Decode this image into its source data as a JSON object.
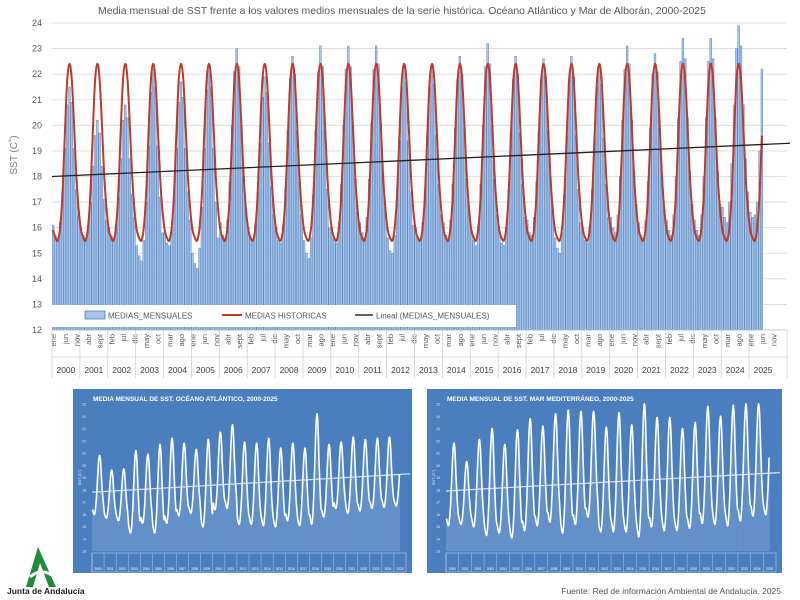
{
  "chart_data": [
    {
      "type": "bar",
      "title": "Media mensual de SST frente a los valores medios mensuales de la serie histórica. Océano Atlántico y Mar de Alborán, 2000-2025",
      "ylabel": "SST (C˚)",
      "xlabel": "",
      "ylim": [
        12,
        24
      ],
      "yticks": [
        12,
        13,
        14,
        15,
        16,
        17,
        18,
        19,
        20,
        21,
        22,
        23,
        24
      ],
      "grid": true,
      "legend_position": "bottom-left",
      "legend": [
        "MEDIAS_MENSUALES",
        "MEDIAS HISTORICAS",
        "Lineal (MEDIAS_MENSUALES)"
      ],
      "month_names": [
        "ene",
        "feb",
        "mar",
        "abr",
        "may",
        "jun",
        "jul",
        "ago",
        "sept",
        "oct",
        "nov",
        "dic"
      ],
      "month_label_step": 5,
      "years": [
        "2000",
        "2001",
        "2002",
        "2003",
        "2004",
        "2005",
        "2006",
        "2007",
        "2008",
        "2009",
        "2010",
        "2011",
        "2012",
        "2013",
        "2014",
        "2015",
        "2016",
        "2017",
        "2018",
        "2019",
        "2020",
        "2021",
        "2022",
        "2023",
        "2024",
        "2025"
      ],
      "series": [
        {
          "name": "MEDIAS_MENSUALES",
          "type": "bar",
          "color": "#a9c4ea",
          "values_by_year": [
            [
              16.1,
              15.7,
              15.6,
              16.2,
              17.4,
              19.1,
              20.8,
              21.5,
              20.9,
              19.1,
              17.5,
              16.5
            ],
            [
              16.0,
              15.7,
              15.6,
              16.1,
              17.0,
              18.4,
              19.6,
              20.2,
              19.7,
              18.4,
              17.1,
              16.3
            ],
            [
              16.0,
              15.7,
              15.6,
              16.1,
              17.2,
              18.7,
              20.2,
              20.8,
              20.3,
              18.7,
              17.3,
              16.4
            ],
            [
              15.3,
              14.9,
              14.7,
              15.5,
              17.0,
              19.2,
              21.3,
              22.2,
              21.5,
              19.2,
              17.2,
              15.8
            ],
            [
              15.8,
              15.4,
              15.3,
              15.9,
              17.2,
              19.1,
              20.9,
              21.7,
              21.1,
              19.1,
              17.4,
              16.3
            ],
            [
              15.0,
              14.6,
              14.4,
              15.2,
              16.8,
              19.1,
              21.4,
              22.3,
              21.5,
              19.1,
              17.0,
              15.6
            ],
            [
              16.2,
              15.7,
              15.6,
              16.3,
              17.8,
              20.0,
              22.1,
              23.0,
              22.3,
              20.0,
              18.0,
              16.7
            ],
            [
              16.0,
              15.6,
              15.5,
              16.1,
              17.4,
              19.3,
              21.1,
              21.9,
              21.3,
              19.3,
              17.6,
              16.5
            ],
            [
              16.0,
              15.5,
              15.4,
              16.1,
              17.6,
              19.8,
              21.8,
              22.7,
              22.0,
              19.8,
              17.8,
              16.5
            ],
            [
              15.5,
              15.0,
              14.8,
              15.6,
              17.3,
              19.8,
              22.1,
              23.1,
              22.3,
              19.8,
              17.5,
              16.0
            ],
            [
              16.0,
              15.6,
              15.4,
              16.2,
              17.7,
              20.0,
              22.2,
              23.1,
              22.3,
              20.0,
              17.9,
              16.6
            ],
            [
              16.2,
              15.8,
              15.6,
              16.4,
              17.9,
              20.1,
              22.2,
              23.1,
              22.4,
              20.1,
              18.1,
              16.7
            ],
            [
              15.6,
              15.1,
              15.0,
              15.7,
              17.2,
              19.4,
              21.5,
              22.4,
              21.7,
              19.4,
              17.4,
              16.1
            ],
            [
              16.0,
              15.6,
              15.5,
              16.2,
              17.5,
              19.6,
              21.5,
              22.3,
              21.6,
              19.6,
              17.7,
              16.5
            ],
            [
              16.2,
              15.7,
              15.6,
              16.3,
              17.7,
              19.9,
              21.8,
              22.7,
              22.0,
              19.9,
              17.9,
              16.7
            ],
            [
              15.9,
              15.5,
              15.3,
              16.1,
              17.7,
              20.0,
              22.3,
              23.2,
              22.4,
              20.0,
              17.9,
              16.5
            ],
            [
              15.9,
              15.4,
              15.3,
              16.0,
              17.5,
              19.7,
              21.8,
              22.7,
              22.0,
              19.7,
              17.7,
              16.4
            ],
            [
              16.3,
              15.8,
              15.7,
              16.4,
              17.8,
              19.8,
              21.8,
              22.6,
              21.9,
              19.8,
              18.0,
              16.7
            ],
            [
              15.6,
              15.2,
              15.0,
              15.8,
              17.3,
              19.6,
              21.8,
              22.7,
              21.9,
              19.6,
              17.5,
              16.2
            ],
            [
              16.0,
              15.5,
              15.4,
              16.1,
              17.5,
              19.5,
              21.5,
              22.3,
              21.6,
              19.5,
              17.7,
              16.4
            ],
            [
              16.4,
              16.0,
              15.8,
              16.5,
              18.0,
              20.2,
              22.2,
              23.1,
              22.4,
              20.2,
              18.2,
              16.9
            ],
            [
              16.2,
              15.7,
              15.6,
              16.3,
              17.8,
              19.9,
              22.0,
              22.8,
              22.1,
              19.9,
              18.0,
              16.7
            ],
            [
              16.3,
              15.9,
              15.7,
              16.5,
              18.0,
              20.3,
              22.5,
              23.4,
              22.6,
              20.3,
              18.2,
              16.9
            ],
            [
              16.3,
              15.9,
              15.7,
              16.5,
              18.0,
              20.3,
              22.5,
              23.4,
              22.6,
              20.3,
              18.2,
              16.9
            ],
            [
              16.8,
              16.4,
              16.2,
              17.0,
              18.5,
              20.8,
              23.0,
              23.9,
              23.1,
              20.8,
              18.7,
              17.4
            ],
            [
              16.6,
              16.4,
              16.5,
              17.0,
              19.0,
              22.2
            ]
          ]
        },
        {
          "name": "MEDIAS HISTORICAS",
          "type": "line",
          "color": "#c0392b",
          "monthly_cycle": [
            15.9,
            15.6,
            15.5,
            16.0,
            17.3,
            19.6,
            21.7,
            22.4,
            21.8,
            20.0,
            18.0,
            16.7
          ]
        },
        {
          "name": "Lineal (MEDIAS_MENSUALES)",
          "type": "trendline",
          "color": "#222222",
          "start_value": 18.0,
          "end_value": 19.3
        }
      ]
    },
    {
      "type": "line",
      "title": "MEDIA MENSUAL DE SST. OCÉANO ATLÁNTICO, 2000-2025",
      "ylabel": "SST (C˚)",
      "ylim": [
        13,
        25
      ],
      "yticks": [
        13,
        14,
        15,
        16,
        17,
        18,
        19,
        20,
        21,
        22,
        23,
        24,
        25
      ],
      "background": "#4a7ebf",
      "annual_max": [
        20.8,
        19.6,
        19.7,
        21.2,
        20.9,
        21.7,
        22.2,
        21.8,
        21.3,
        22.1,
        22.7,
        23.3,
        21.9,
        21.8,
        22.2,
        21.4,
        21.8,
        21.4,
        24.2,
        21.7,
        21.9,
        22.3,
        22.1,
        22.2,
        22.3,
        21.0
      ],
      "annual_min": [
        16.0,
        15.7,
        15.5,
        14.5,
        15.3,
        14.5,
        15.3,
        15.9,
        16.1,
        15.0,
        16.4,
        16.5,
        15.2,
        15.2,
        15.1,
        15.0,
        15.5,
        15.1,
        15.2,
        15.8,
        16.5,
        16.1,
        16.3,
        16.5,
        16.6,
        16.7
      ],
      "trend": [
        17.8,
        19.3
      ]
    },
    {
      "type": "line",
      "title": "MEDIA MENSUAL DE SST. MAR MEDITERRÁNEO, 2000-2025",
      "ylabel": "SST (C˚)",
      "ylim": [
        13,
        25
      ],
      "yticks": [
        13,
        14,
        15,
        16,
        17,
        18,
        19,
        20,
        21,
        22,
        23,
        24,
        25
      ],
      "background": "#4a7ebf",
      "annual_max": [
        21.8,
        20.3,
        22.1,
        23.0,
        21.7,
        22.9,
        23.8,
        23.2,
        24.2,
        24.5,
        24.4,
        24.4,
        23.1,
        24.3,
        23.3,
        25.0,
        23.9,
        23.9,
        23.0,
        23.5,
        24.8,
        24.0,
        24.9,
        25.0,
        25.0,
        23.7
      ],
      "annual_min": [
        15.1,
        15.2,
        15.0,
        14.3,
        14.5,
        14.1,
        14.7,
        15.1,
        15.4,
        14.5,
        15.2,
        15.8,
        14.6,
        14.6,
        14.6,
        14.2,
        15.0,
        14.7,
        14.7,
        14.9,
        15.3,
        15.2,
        15.1,
        15.5,
        15.9,
        16.0
      ],
      "trend": [
        17.9,
        19.4
      ]
    }
  ],
  "footer": {
    "logo_text": "Junta de Andalucía",
    "source": "Fuente: Red de información Ambiental de Andalucía.  2025"
  },
  "colors": {
    "bar_stroke": "#4f81bd",
    "logo_green": "#1e8a3c",
    "grid": "#d9d9d9"
  }
}
